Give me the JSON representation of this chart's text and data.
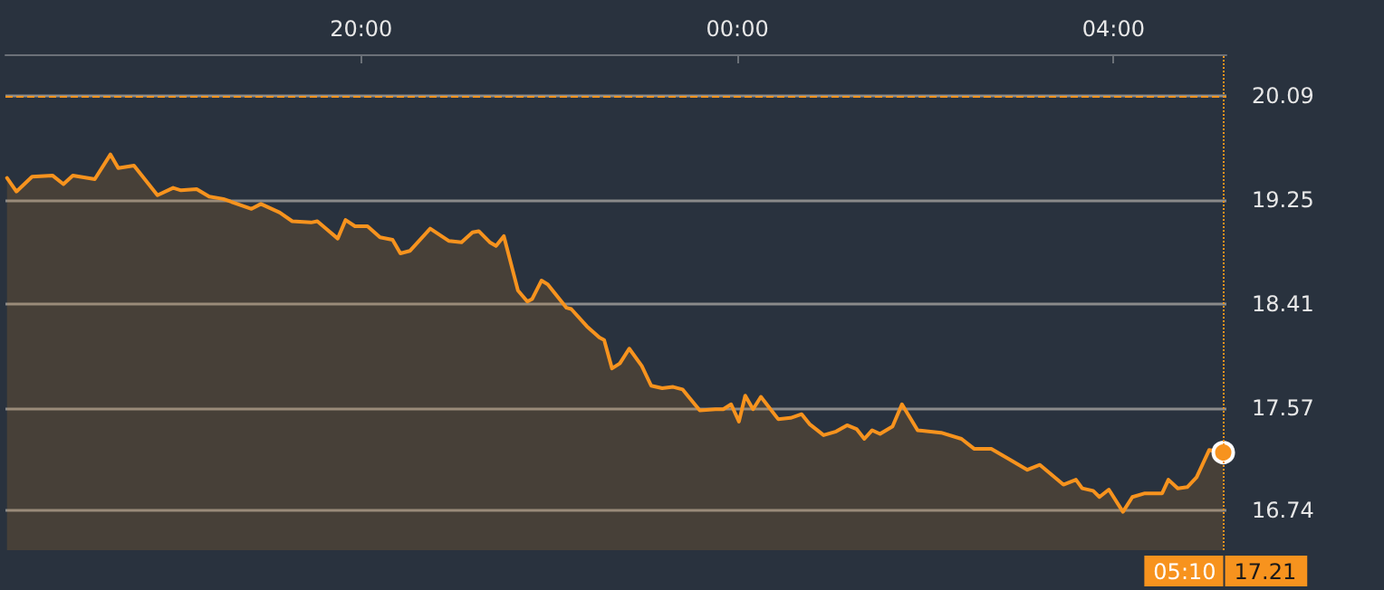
{
  "chart_data": {
    "type": "area",
    "x": [
      "2000-01-01T16:14",
      "2000-01-01T16:20",
      "2000-01-01T16:30",
      "2000-01-01T16:43",
      "2000-01-01T16:50",
      "2000-01-01T16:56",
      "2000-01-01T17:10",
      "2000-01-01T17:20",
      "2000-01-01T17:25",
      "2000-01-01T17:35",
      "2000-01-01T17:50",
      "2000-01-01T18:00",
      "2000-01-01T18:05",
      "2000-01-01T18:15",
      "2000-01-01T18:23",
      "2000-01-01T18:32",
      "2000-01-01T18:50",
      "2000-01-01T18:56",
      "2000-01-01T19:08",
      "2000-01-01T19:16",
      "2000-01-01T19:28",
      "2000-01-01T19:32",
      "2000-01-01T19:45",
      "2000-01-01T19:50",
      "2000-01-01T19:56",
      "2000-01-01T20:04",
      "2000-01-01T20:12",
      "2000-01-01T20:20",
      "2000-01-01T20:25",
      "2000-01-01T20:31",
      "2000-01-01T20:44",
      "2000-01-01T20:56",
      "2000-01-01T21:04",
      "2000-01-01T21:11",
      "2000-01-01T21:15",
      "2000-01-01T21:22",
      "2000-01-01T21:26",
      "2000-01-01T21:31",
      "2000-01-01T21:40",
      "2000-01-01T21:46",
      "2000-01-01T21:49",
      "2000-01-01T21:55",
      "2000-01-01T21:59",
      "2000-01-01T22:11",
      "2000-01-01T22:14",
      "2000-01-01T22:24",
      "2000-01-01T22:32",
      "2000-01-01T22:35",
      "2000-01-01T22:40",
      "2000-01-01T22:45",
      "2000-01-01T22:51",
      "2000-01-01T22:59",
      "2000-01-01T23:05",
      "2000-01-01T23:12",
      "2000-01-01T23:19",
      "2000-01-01T23:25",
      "2000-01-01T23:36",
      "2000-01-01T23:46",
      "2000-01-01T23:51",
      "2000-01-01T23:56",
      "2000-01-02T00:01",
      "2000-01-02T00:05",
      "2000-01-02T00:10",
      "2000-01-02T00:15",
      "2000-01-02T00:26",
      "2000-01-02T00:34",
      "2000-01-02T00:41",
      "2000-01-02T00:46",
      "2000-01-02T00:55",
      "2000-01-02T01:03",
      "2000-01-02T01:10",
      "2000-01-02T01:16",
      "2000-01-02T01:21",
      "2000-01-02T01:26",
      "2000-01-02T01:31",
      "2000-01-02T01:39",
      "2000-01-02T01:45",
      "2000-01-02T01:55",
      "2000-01-02T02:10",
      "2000-01-02T02:23",
      "2000-01-02T02:31",
      "2000-01-02T02:42",
      "2000-01-02T03:05",
      "2000-01-02T03:13",
      "2000-01-02T03:28",
      "2000-01-02T03:36",
      "2000-01-02T03:40",
      "2000-01-02T03:47",
      "2000-01-02T03:51",
      "2000-01-02T03:57",
      "2000-01-02T04:06",
      "2000-01-02T04:12",
      "2000-01-02T04:20",
      "2000-01-02T04:31",
      "2000-01-02T04:35",
      "2000-01-02T04:41",
      "2000-01-02T04:47",
      "2000-01-02T04:53",
      "2000-01-02T05:01",
      "2000-01-02T05:10"
    ],
    "series": [
      {
        "color": "#f7931e",
        "values": [
          19.43,
          19.32,
          19.44,
          19.45,
          19.38,
          19.45,
          19.42,
          19.62,
          19.51,
          19.53,
          19.29,
          19.35,
          19.33,
          19.34,
          19.28,
          19.26,
          19.18,
          19.22,
          19.15,
          19.08,
          19.07,
          19.08,
          18.94,
          19.09,
          19.04,
          19.04,
          18.95,
          18.93,
          18.82,
          18.84,
          19.02,
          18.92,
          18.91,
          18.99,
          19.0,
          18.91,
          18.88,
          18.96,
          18.52,
          18.43,
          18.45,
          18.6,
          18.57,
          18.38,
          18.37,
          18.23,
          18.14,
          18.12,
          17.89,
          17.93,
          18.05,
          17.91,
          17.75,
          17.73,
          17.74,
          17.72,
          17.55,
          17.56,
          17.56,
          17.6,
          17.46,
          17.67,
          17.56,
          17.66,
          17.48,
          17.49,
          17.52,
          17.44,
          17.35,
          17.38,
          17.43,
          17.4,
          17.32,
          17.39,
          17.36,
          17.42,
          17.6,
          17.39,
          17.37,
          17.32,
          17.24,
          17.24,
          17.07,
          17.11,
          16.95,
          16.99,
          16.92,
          16.9,
          16.85,
          16.91,
          16.73,
          16.85,
          16.88,
          16.88,
          16.99,
          16.92,
          16.93,
          17.01,
          17.23,
          17.21
        ]
      }
    ],
    "xlim": [
      "2000-01-01T16:13",
      "2000-01-02T05:12"
    ],
    "xticks": [
      {
        "value": "2000-01-01T20:00",
        "label": "20:00"
      },
      {
        "value": "2000-01-02T00:00",
        "label": "00:00"
      },
      {
        "value": "2000-01-02T04:00",
        "label": "04:00"
      }
    ],
    "ylim": [
      16.42,
      20.43
    ],
    "yticks": [
      16.74,
      17.57,
      18.41,
      19.25,
      20.09
    ],
    "grid": "y",
    "ref_lines": [
      {
        "axis": "y",
        "value": 20.09,
        "color": "#f7931e",
        "line_style": "dashed"
      },
      {
        "axis": "x",
        "value": "2000-01-02T05:10",
        "label": "05:10",
        "color": "#f7931e",
        "line_style": "dotted"
      }
    ],
    "annotations": [
      "17.21"
    ]
  }
}
